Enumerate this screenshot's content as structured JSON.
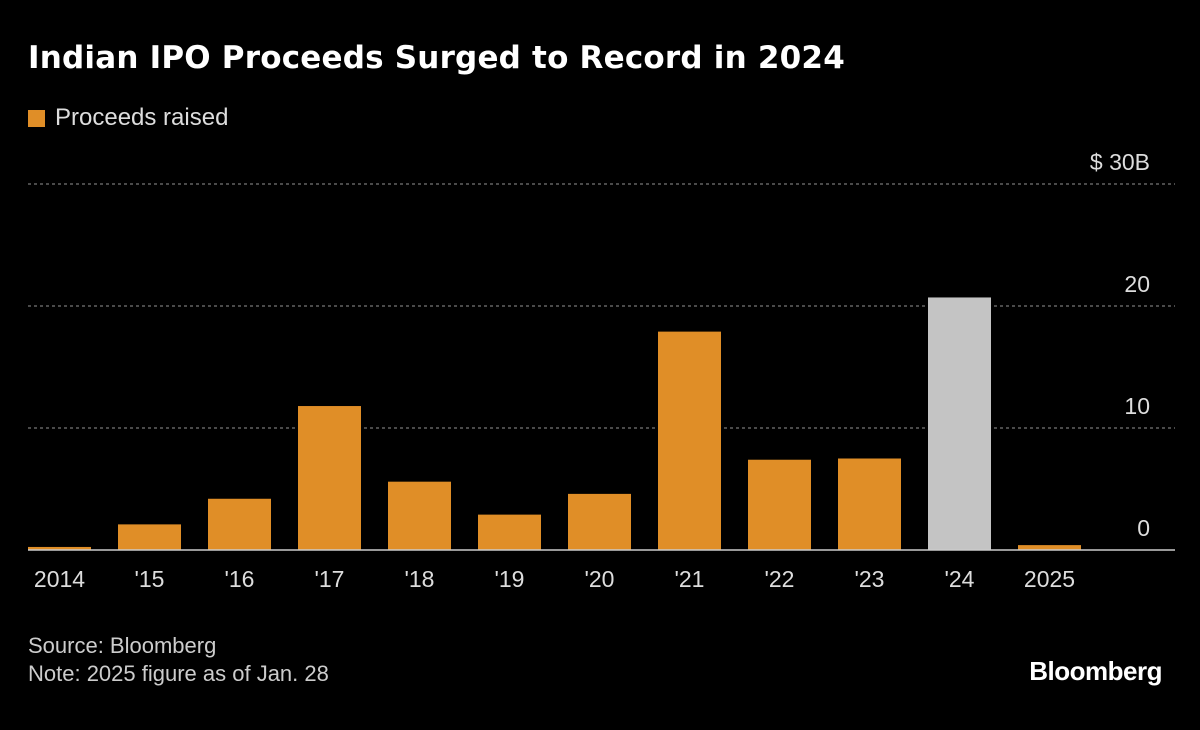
{
  "chart_data": {
    "type": "bar",
    "title": "Indian IPO Proceeds Surged to Record in 2024",
    "legend": [
      {
        "name": "Proceeds raised",
        "color": "#e08e27"
      }
    ],
    "legend_position": "top-left",
    "categories": [
      "2014",
      "'15",
      "'16",
      "'17",
      "'18",
      "'19",
      "'20",
      "'21",
      "'22",
      "'23",
      "'24",
      "2025"
    ],
    "values": [
      0.25,
      2.1,
      4.2,
      11.8,
      5.6,
      2.9,
      4.6,
      17.9,
      7.4,
      7.5,
      20.7,
      0.4
    ],
    "bar_colors": [
      "#e08e27",
      "#e08e27",
      "#e08e27",
      "#e08e27",
      "#e08e27",
      "#e08e27",
      "#e08e27",
      "#e08e27",
      "#e08e27",
      "#e08e27",
      "#c4c4c4",
      "#e08e27"
    ],
    "ylim": [
      0,
      30
    ],
    "yticks": [
      0,
      10,
      20,
      30
    ],
    "ytick_labels": [
      "0",
      "10",
      "20",
      "$ 30B"
    ],
    "y_axis_side": "right",
    "grid": "horizontal dotted"
  },
  "footer": {
    "source": "Source: Bloomberg",
    "note": "Note: 2025 figure as of Jan. 28",
    "logo": "Bloomberg"
  }
}
